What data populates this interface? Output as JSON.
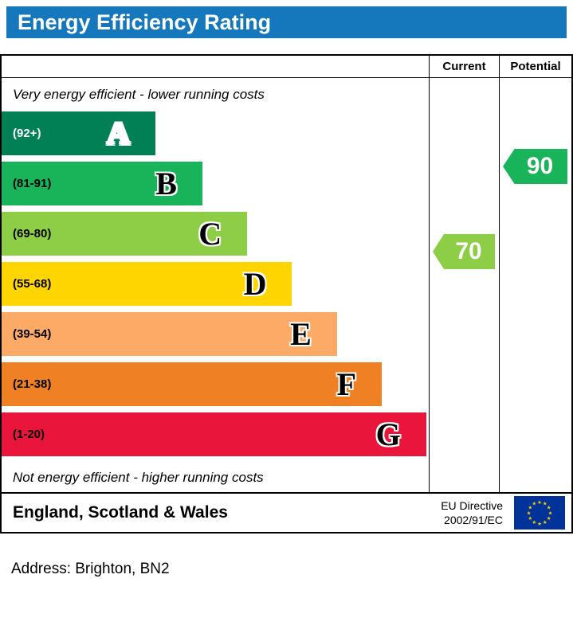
{
  "header": {
    "title": "Energy Efficiency Rating"
  },
  "colors": {
    "title_bar": "#1577bc",
    "border": "#000000",
    "eu_flag_bg": "#003399",
    "eu_flag_stars": "#ffcc00"
  },
  "icons": {
    "eu_star": "★"
  },
  "chart_data": {
    "type": "bar",
    "subtype": "energy-efficiency-rating",
    "title": "Energy Efficiency Rating",
    "columns": [
      "Current",
      "Potential"
    ],
    "top_caption": "Very energy efficient - lower running costs",
    "bottom_caption": "Not energy efficient - higher running costs",
    "bands": [
      {
        "letter": "A",
        "range": "(92+)",
        "min": 92,
        "max": 100,
        "color": "#008054",
        "width_pct": 36,
        "range_text_color": "#ffffff",
        "letter_color": "#ffffff"
      },
      {
        "letter": "B",
        "range": "(81-91)",
        "min": 81,
        "max": 91,
        "color": "#19b459",
        "width_pct": 47,
        "range_text_color": "#000000",
        "letter_color": "#000000"
      },
      {
        "letter": "C",
        "range": "(69-80)",
        "min": 69,
        "max": 80,
        "color": "#8dce46",
        "width_pct": 57.5,
        "range_text_color": "#000000",
        "letter_color": "#000000"
      },
      {
        "letter": "D",
        "range": "(55-68)",
        "min": 55,
        "max": 68,
        "color": "#ffd500",
        "width_pct": 68,
        "range_text_color": "#000000",
        "letter_color": "#000000"
      },
      {
        "letter": "E",
        "range": "(39-54)",
        "min": 39,
        "max": 54,
        "color": "#fcaa65",
        "width_pct": 78.5,
        "range_text_color": "#000000",
        "letter_color": "#000000"
      },
      {
        "letter": "F",
        "range": "(21-38)",
        "min": 21,
        "max": 38,
        "color": "#ef8023",
        "width_pct": 89,
        "range_text_color": "#000000",
        "letter_color": "#000000"
      },
      {
        "letter": "G",
        "range": "(1-20)",
        "min": 1,
        "max": 20,
        "color": "#e9153b",
        "width_pct": 99.4,
        "range_text_color": "#000000",
        "letter_color": "#000000"
      }
    ],
    "current": {
      "value": 70,
      "band": "C",
      "band_index": 2,
      "color": "#8dce46"
    },
    "potential": {
      "value": 90,
      "band": "B",
      "band_index": 1,
      "color": "#19b459"
    }
  },
  "footer": {
    "region": "England, Scotland & Wales",
    "directive": [
      "EU Directive",
      "2002/91/EC"
    ]
  },
  "address": "Address: Brighton, BN2"
}
